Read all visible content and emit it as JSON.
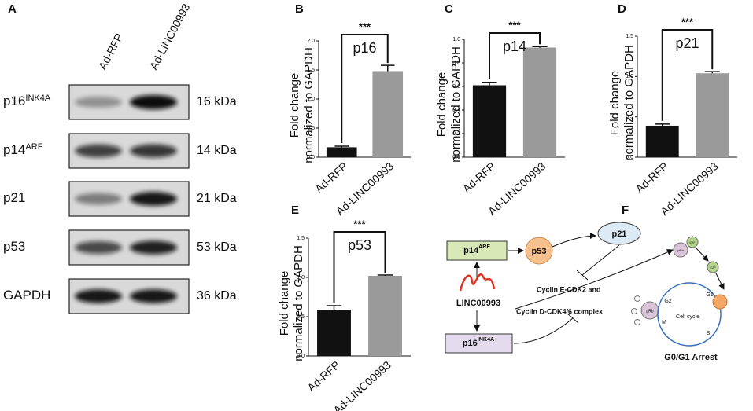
{
  "blot": {
    "label": "A",
    "lanes": [
      "Ad-RFP",
      "Ad-LINC00993"
    ],
    "rows": [
      {
        "protein": "p16",
        "sup": "INK4A",
        "size": "16 kDa"
      },
      {
        "protein": "p14",
        "sup": "ARF",
        "size": "14 kDa"
      },
      {
        "protein": "p21",
        "size": "21 kDa"
      },
      {
        "protein": "p53",
        "size": "53 kDa"
      },
      {
        "protein": "GAPDH",
        "size": "36 kDa"
      }
    ]
  },
  "chart_data": [
    {
      "type": "bar",
      "panel": "B",
      "ylabel": [
        "Fold change",
        "normalized to GAPDH"
      ],
      "annotation": "p16",
      "significance": "***",
      "categories": [
        "Ad-RFP",
        "Ad-LINC00993"
      ],
      "values": [
        0.17,
        1.48
      ],
      "errors": [
        0.02,
        0.1
      ],
      "colors": [
        "#111111",
        "#9a9a9a"
      ],
      "ylim": [
        0,
        2.0
      ],
      "yticks": [
        {
          "value": 0,
          "label": "0.0"
        },
        {
          "value": 0.5,
          "label": "0.5"
        },
        {
          "value": 1.0,
          "label": "1.0"
        },
        {
          "value": 1.5,
          "label": "1.5"
        },
        {
          "value": 2.0,
          "label": "2.0"
        }
      ]
    },
    {
      "type": "bar",
      "panel": "C",
      "ylabel": [
        "Fold change",
        "normalized to GAPDH"
      ],
      "annotation": "p14",
      "significance": "***",
      "categories": [
        "Ad-RFP",
        "Ad-LINC00993"
      ],
      "values": [
        0.61,
        0.93
      ],
      "errors": [
        0.025,
        0.008
      ],
      "colors": [
        "#111111",
        "#9a9a9a"
      ],
      "ylim": [
        0,
        1.0
      ],
      "yticks": [
        {
          "value": 0,
          "label": "0.0"
        },
        {
          "value": 0.2,
          "label": "0.2"
        },
        {
          "value": 0.4,
          "label": "0.4"
        },
        {
          "value": 0.6,
          "label": "0.6"
        },
        {
          "value": 0.8,
          "label": "0.8"
        },
        {
          "value": 1.0,
          "label": "1.0"
        }
      ]
    },
    {
      "type": "bar",
      "panel": "D",
      "ylabel": [
        "Fold change",
        "normalized to GAPDH"
      ],
      "annotation": "p21",
      "significance": "***",
      "categories": [
        "Ad-RFP",
        "Ad-LINC00993"
      ],
      "values": [
        0.39,
        1.04
      ],
      "errors": [
        0.02,
        0.02
      ],
      "colors": [
        "#111111",
        "#9a9a9a"
      ],
      "ylim": [
        0,
        1.5
      ],
      "yticks": [
        {
          "value": 0,
          "label": "0.0"
        },
        {
          "value": 0.5,
          "label": "0.5"
        },
        {
          "value": 1.0,
          "label": "1.0"
        },
        {
          "value": 1.5,
          "label": "1.5"
        }
      ]
    },
    {
      "type": "bar",
      "panel": "E",
      "ylabel": [
        "Fold change",
        "normalized to GAPDH"
      ],
      "annotation": "p53",
      "significance": "***",
      "categories": [
        "Ad-RFP",
        "Ad-LINC00993"
      ],
      "values": [
        0.59,
        1.02
      ],
      "errors": [
        0.05,
        0.01
      ],
      "colors": [
        "#111111",
        "#9a9a9a"
      ],
      "ylim": [
        0,
        1.5
      ],
      "yticks": [
        {
          "value": 0,
          "label": "0.0"
        },
        {
          "value": 0.5,
          "label": "0.5"
        },
        {
          "value": 1.0,
          "label": "1.0"
        },
        {
          "value": 1.5,
          "label": "1.5"
        }
      ]
    }
  ],
  "diagram": {
    "label": "F",
    "p14": {
      "name": "p14",
      "sup": "ARF"
    },
    "p53": "p53",
    "p21": "p21",
    "lnc": "LINC00993",
    "p16": {
      "name": "p16",
      "sup": "INK4A"
    },
    "cyclin1": "Cyclin E-CDK2 and",
    "cyclin2": "Cyclin D-CDK4/6 complex",
    "arrest": "G0/G1 Arrest",
    "cycle": {
      "title": "Cell cycle",
      "g1": "G1",
      "g2": "G2",
      "m": "M",
      "s": "S"
    },
    "prb": "pRb",
    "e2f": "E2F"
  }
}
